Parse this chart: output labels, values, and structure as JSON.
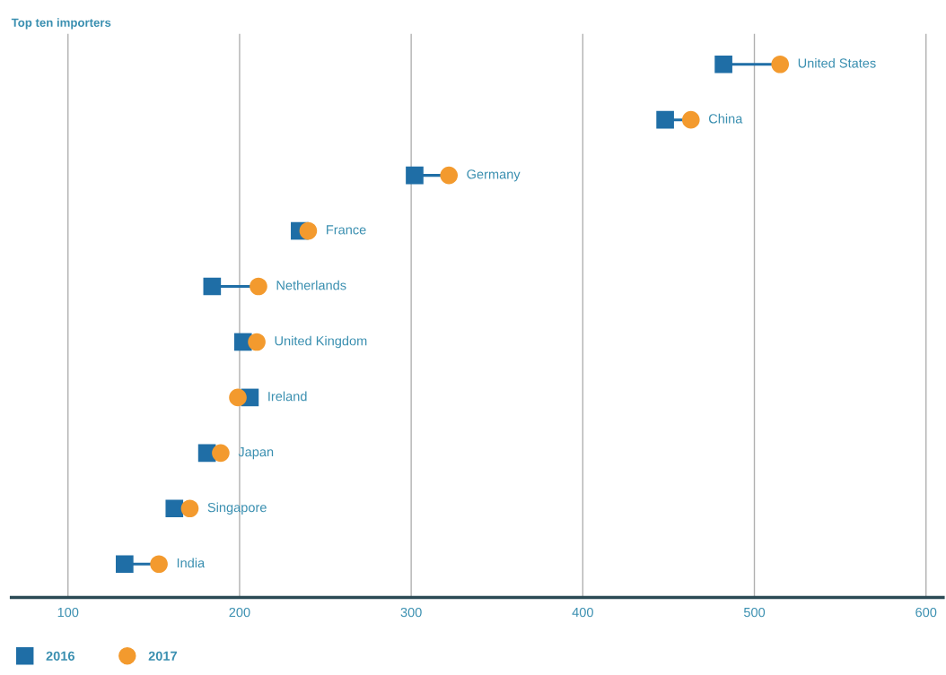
{
  "chart_data": {
    "type": "scatter",
    "orientation": "horizontal",
    "title": "Top ten importers",
    "categories": [
      "United States",
      "China",
      "Germany",
      "France",
      "Netherlands",
      "United Kingdom",
      "Ireland",
      "Japan",
      "Singapore",
      "India"
    ],
    "series": [
      {
        "name": "2016",
        "color": "#1f6ea6",
        "marker": "square",
        "values": [
          482,
          448,
          302,
          235,
          184,
          202,
          206,
          181,
          162,
          133
        ]
      },
      {
        "name": "2017",
        "color": "#f39a2e",
        "marker": "circle",
        "values": [
          515,
          463,
          322,
          240,
          211,
          210,
          199,
          189,
          171,
          153
        ]
      }
    ],
    "xlim": [
      67,
      610
    ],
    "xticks": [
      100,
      200,
      300,
      400,
      500,
      600
    ],
    "grid": "x",
    "legend": "bottom left",
    "tick_labels": "x"
  }
}
